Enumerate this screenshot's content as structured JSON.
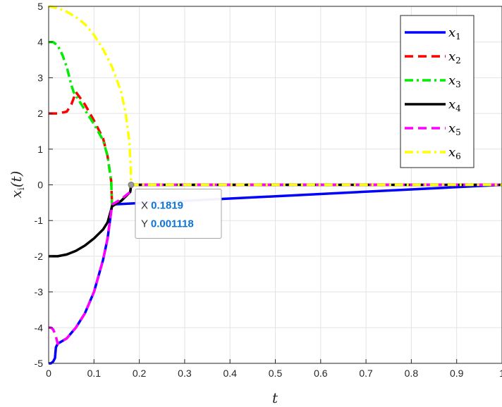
{
  "chart_data": {
    "type": "line",
    "title": "",
    "xlabel": "t",
    "ylabel": "x_i(t)",
    "xlim": [
      0,
      1
    ],
    "ylim": [
      -5,
      5
    ],
    "xticks": [
      "0",
      "0.1",
      "0.2",
      "0.3",
      "0.4",
      "0.5",
      "0.6",
      "0.7",
      "0.8",
      "0.9",
      "1"
    ],
    "yticks": [
      "-5",
      "-4",
      "-3",
      "-2",
      "-1",
      "0",
      "1",
      "2",
      "3",
      "4",
      "5"
    ],
    "grid": true,
    "legend": "top-right",
    "series": [
      {
        "name": "x",
        "sub": "1",
        "color": "#0000ff",
        "dash": "solid",
        "x": [
          0,
          0.005,
          0.01,
          0.014,
          0.016,
          0.02,
          0.04,
          0.06,
          0.08,
          0.1,
          0.12,
          0.13,
          0.14,
          1
        ],
        "y": [
          -5,
          -5,
          -4.95,
          -4.85,
          -4.55,
          -4.45,
          -4.3,
          -4.0,
          -3.6,
          -3.0,
          -2.1,
          -1.5,
          -0.55,
          0
        ]
      },
      {
        "name": "x",
        "sub": "2",
        "color": "#ff0000",
        "dash": "dashed",
        "x": [
          0,
          0.02,
          0.04,
          0.05,
          0.056,
          0.06,
          0.08,
          0.1,
          0.12,
          0.13,
          0.138,
          0.14,
          0.16,
          0.18,
          0.182,
          1
        ],
        "y": [
          2,
          2,
          2.05,
          2.25,
          2.45,
          2.6,
          2.25,
          1.8,
          1.3,
          0.8,
          0.1,
          -0.6,
          -0.45,
          -0.2,
          0,
          0
        ]
      },
      {
        "name": "x",
        "sub": "3",
        "color": "#00ee00",
        "dash": "dashdot",
        "x": [
          0,
          0.01,
          0.02,
          0.03,
          0.04,
          0.05,
          0.055,
          0.06,
          0.08,
          0.1,
          0.12,
          0.13,
          0.138,
          0.14,
          0.16,
          0.18,
          0.182,
          1
        ],
        "y": [
          4,
          4,
          3.9,
          3.65,
          3.3,
          2.8,
          2.6,
          2.5,
          2.1,
          1.7,
          1.25,
          0.8,
          0.1,
          -0.6,
          -0.45,
          -0.2,
          0,
          0
        ]
      },
      {
        "name": "x",
        "sub": "4",
        "color": "#000000",
        "dash": "solid",
        "x": [
          0,
          0.02,
          0.04,
          0.06,
          0.08,
          0.1,
          0.12,
          0.13,
          0.14,
          0.16,
          0.18,
          0.182,
          1
        ],
        "y": [
          -2,
          -2,
          -1.95,
          -1.85,
          -1.7,
          -1.5,
          -1.25,
          -1.05,
          -0.6,
          -0.45,
          -0.2,
          0,
          0
        ]
      },
      {
        "name": "x",
        "sub": "5",
        "color": "#ff00ff",
        "dash": "dashed",
        "x": [
          0,
          0.005,
          0.01,
          0.015,
          0.02,
          0.04,
          0.06,
          0.08,
          0.1,
          0.12,
          0.13,
          0.14,
          0.16,
          0.18,
          0.182,
          1
        ],
        "y": [
          -4,
          -4,
          -4.05,
          -4.2,
          -4.45,
          -4.3,
          -4.0,
          -3.6,
          -3.0,
          -2.1,
          -1.5,
          -0.55,
          -0.4,
          -0.2,
          0,
          0
        ]
      },
      {
        "name": "x",
        "sub": "6",
        "color": "#ffff00",
        "dash": "dashdot",
        "x": [
          0,
          0.02,
          0.04,
          0.06,
          0.08,
          0.1,
          0.12,
          0.14,
          0.16,
          0.17,
          0.178,
          0.181,
          0.182,
          1
        ],
        "y": [
          5,
          4.95,
          4.85,
          4.7,
          4.5,
          4.2,
          3.8,
          3.3,
          2.6,
          2.0,
          1.2,
          0.5,
          0,
          0
        ]
      }
    ],
    "datatip": {
      "x_key": "X",
      "x_value": "0.1819",
      "y_key": "Y",
      "y_value": "0.001118",
      "at": [
        0.1819,
        0.001118
      ]
    }
  }
}
